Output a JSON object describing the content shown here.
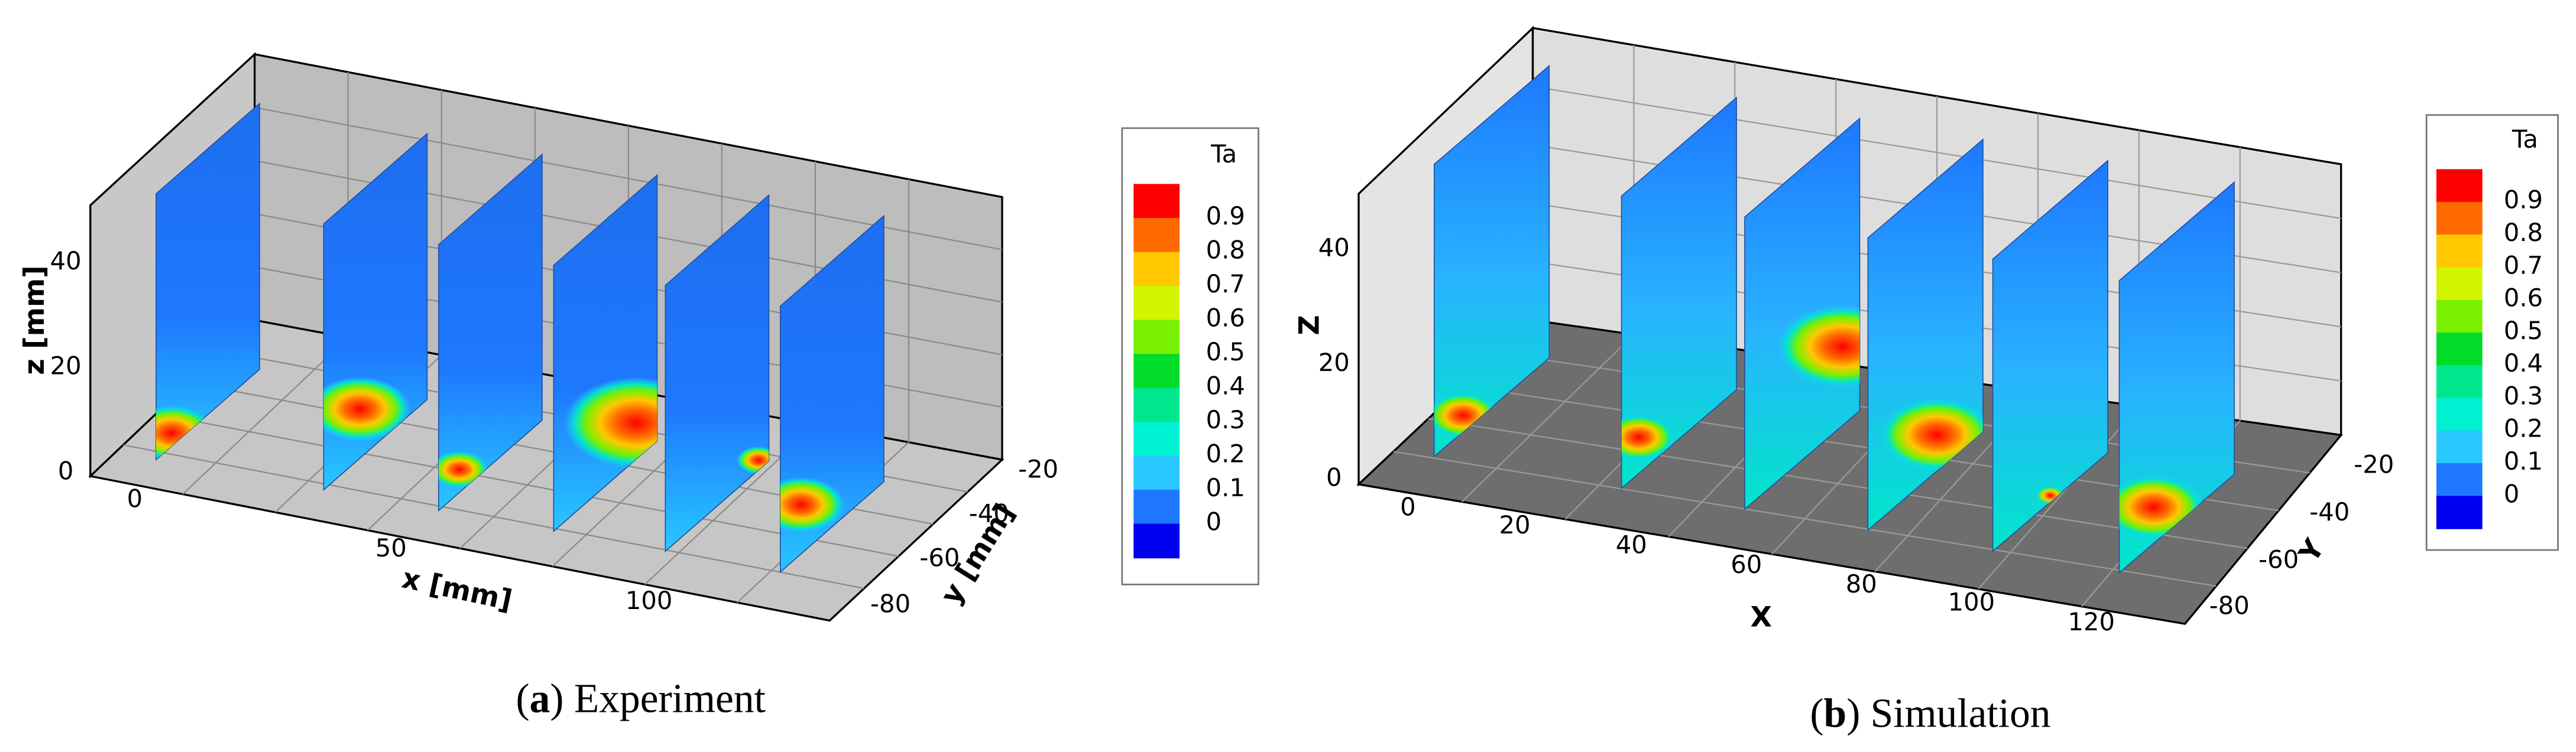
{
  "panels": [
    {
      "caption": {
        "parts": [
          "(",
          "a",
          ") Experiment"
        ]
      },
      "axes": {
        "x": {
          "label": "x [mm]",
          "ticks": [
            0,
            50,
            100
          ]
        },
        "y": {
          "label": "y [mm]",
          "ticks": [
            -20,
            -40,
            -60,
            -80
          ]
        },
        "z": {
          "label": "z [mm]",
          "ticks": [
            40,
            20,
            0
          ]
        }
      },
      "legend": {
        "title": "Ta",
        "levels": [
          0.9,
          0.8,
          0.7,
          0.6,
          0.5,
          0.4,
          0.3,
          0.2,
          0.1,
          0
        ],
        "colors": [
          "#ff0000",
          "#ff6a00",
          "#ffc800",
          "#d2f500",
          "#78f000",
          "#00dc28",
          "#00e68c",
          "#00f0d2",
          "#28c8ff",
          "#1e78ff",
          "#0000f0"
        ]
      }
    },
    {
      "caption": {
        "parts": [
          "(",
          "b",
          ") Simulation"
        ]
      },
      "axes": {
        "x": {
          "label": "X",
          "ticks": [
            0,
            20,
            40,
            60,
            80,
            100,
            120
          ]
        },
        "y": {
          "label": "Y",
          "ticks": [
            -20,
            -40,
            -60,
            -80
          ]
        },
        "z": {
          "label": "Z",
          "ticks": [
            40,
            20,
            0
          ]
        }
      },
      "legend": {
        "title": "Ta",
        "levels": [
          0.9,
          0.8,
          0.7,
          0.6,
          0.5,
          0.4,
          0.3,
          0.2,
          0.1,
          0
        ],
        "colors": [
          "#ff0000",
          "#ff6a00",
          "#ffc800",
          "#d2f500",
          "#78f000",
          "#00dc28",
          "#00e68c",
          "#00f0d2",
          "#28c8ff",
          "#1e78ff",
          "#0000f0"
        ]
      }
    }
  ]
}
